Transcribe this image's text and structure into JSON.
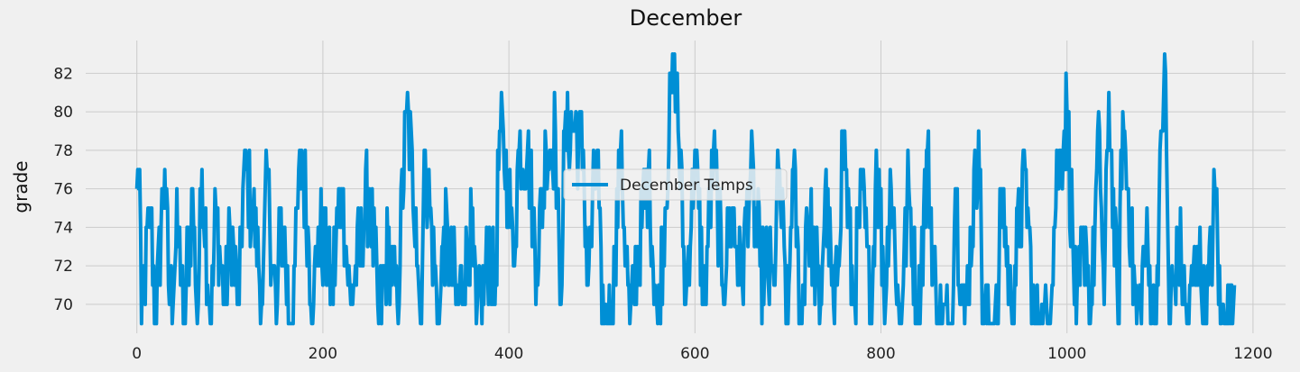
{
  "chart_data": {
    "type": "line",
    "title": "December",
    "xlabel": "",
    "ylabel": "grade",
    "xlim": [
      -55,
      1235
    ],
    "ylim": [
      68.5,
      83.7
    ],
    "xticks": [
      0,
      200,
      400,
      600,
      800,
      1000,
      1200
    ],
    "yticks": [
      70,
      72,
      74,
      76,
      78,
      80,
      82
    ],
    "grid": true,
    "legend": "center",
    "series": [
      {
        "name": "December Temps",
        "color": "#008fd5",
        "peaks": [
          [
            0,
            76
          ],
          [
            3,
            77
          ],
          [
            15,
            75
          ],
          [
            30,
            77
          ],
          [
            45,
            74
          ],
          [
            60,
            76
          ],
          [
            70,
            77
          ],
          [
            85,
            75
          ],
          [
            100,
            74
          ],
          [
            115,
            77
          ],
          [
            125,
            75
          ],
          [
            140,
            77
          ],
          [
            155,
            75
          ],
          [
            170,
            72
          ],
          [
            177,
            78
          ],
          [
            195,
            74
          ],
          [
            220,
            76
          ],
          [
            250,
            76
          ],
          [
            270,
            73
          ],
          [
            290,
            80
          ],
          [
            300,
            75
          ],
          [
            310,
            78
          ],
          [
            330,
            74
          ],
          [
            360,
            74
          ],
          [
            380,
            73
          ],
          [
            390,
            79
          ],
          [
            400,
            76
          ],
          [
            410,
            78
          ],
          [
            420,
            78
          ],
          [
            440,
            78
          ],
          [
            450,
            79
          ],
          [
            460,
            79
          ],
          [
            470,
            79
          ],
          [
            480,
            78
          ],
          [
            495,
            78
          ],
          [
            520,
            78
          ],
          [
            550,
            77
          ],
          [
            575,
            81
          ],
          [
            580,
            82
          ],
          [
            600,
            78
          ],
          [
            620,
            78
          ],
          [
            640,
            75
          ],
          [
            660,
            77
          ],
          [
            690,
            77
          ],
          [
            705,
            77
          ],
          [
            720,
            75
          ],
          [
            740,
            76
          ],
          [
            760,
            79
          ],
          [
            780,
            76
          ],
          [
            795,
            78
          ],
          [
            810,
            77
          ],
          [
            830,
            76
          ],
          [
            850,
            78
          ],
          [
            880,
            76
          ],
          [
            905,
            79
          ],
          [
            930,
            76
          ],
          [
            955,
            77
          ],
          [
            990,
            77
          ],
          [
            1000,
            80
          ],
          [
            1020,
            74
          ],
          [
            1035,
            79
          ],
          [
            1045,
            81
          ],
          [
            1060,
            80
          ],
          [
            1085,
            73
          ],
          [
            1105,
            83
          ],
          [
            1120,
            73
          ],
          [
            1140,
            73
          ],
          [
            1160,
            76
          ],
          [
            1180,
            71
          ]
        ],
        "troughs": [
          [
            5,
            69
          ],
          [
            20,
            69
          ],
          [
            35,
            70
          ],
          [
            50,
            69
          ],
          [
            65,
            69
          ],
          [
            80,
            69
          ],
          [
            95,
            70
          ],
          [
            110,
            70
          ],
          [
            135,
            70
          ],
          [
            150,
            69
          ],
          [
            165,
            69
          ],
          [
            190,
            70
          ],
          [
            210,
            71
          ],
          [
            230,
            70
          ],
          [
            260,
            69
          ],
          [
            280,
            70
          ],
          [
            305,
            69
          ],
          [
            325,
            69
          ],
          [
            345,
            70
          ],
          [
            365,
            69
          ],
          [
            385,
            70
          ],
          [
            405,
            72
          ],
          [
            430,
            72
          ],
          [
            455,
            70
          ],
          [
            485,
            71
          ],
          [
            500,
            69
          ],
          [
            510,
            69
          ],
          [
            530,
            69
          ],
          [
            560,
            69
          ],
          [
            590,
            70
          ],
          [
            610,
            70
          ],
          [
            630,
            71
          ],
          [
            650,
            71
          ],
          [
            670,
            72
          ],
          [
            685,
            71
          ],
          [
            700,
            69
          ],
          [
            715,
            69
          ],
          [
            735,
            70
          ],
          [
            750,
            69
          ],
          [
            770,
            70
          ],
          [
            790,
            69
          ],
          [
            805,
            70
          ],
          [
            820,
            69
          ],
          [
            840,
            69
          ],
          [
            860,
            69
          ],
          [
            875,
            69
          ],
          [
            890,
            69
          ],
          [
            910,
            69
          ],
          [
            925,
            69
          ],
          [
            940,
            70
          ],
          [
            965,
            69
          ],
          [
            980,
            69
          ],
          [
            1010,
            69
          ],
          [
            1025,
            69
          ],
          [
            1040,
            70
          ],
          [
            1055,
            69
          ],
          [
            1075,
            69
          ],
          [
            1095,
            69
          ],
          [
            1110,
            69
          ],
          [
            1130,
            69
          ],
          [
            1150,
            69
          ],
          [
            1165,
            69
          ],
          [
            1178,
            69
          ]
        ]
      }
    ]
  }
}
